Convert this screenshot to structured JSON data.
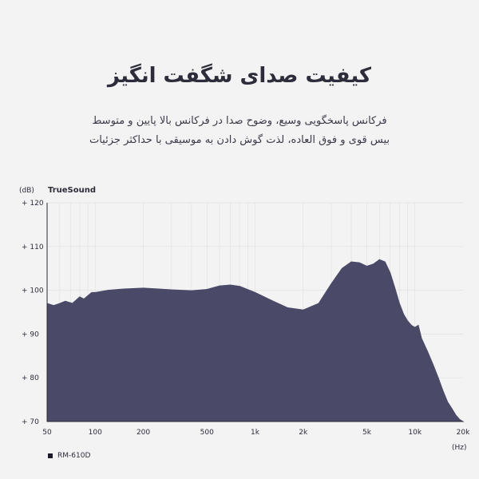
{
  "header": {
    "title": "کیفیت صدای شگفت انگیز",
    "subtitle_lines": [
      "فرکانس پاسخگویی وسیع، وضوح صدا در فرکانس بالا پایین و متوسط",
      "بیس قوی و فوق العاده، لذت گوش دادن به موسیقی با حداکثر جزئیات"
    ]
  },
  "colors": {
    "fill": "#4a4a68",
    "grid": "#e2e2e2",
    "axis": "#2b2b3a"
  },
  "chart_data": {
    "type": "area",
    "title": "",
    "brand_label": "TrueSound",
    "ylabel": "(dB)",
    "xlabel": "(Hz)",
    "ylim": [
      70,
      120
    ],
    "xlim": [
      50,
      20000
    ],
    "x_scale": "log",
    "grid": true,
    "y_ticks": [
      120,
      110,
      100,
      90,
      80,
      70
    ],
    "y_tick_labels": [
      "+ 120",
      "+ 110",
      "+ 100",
      "+ 90",
      "+ 80",
      "+ 70"
    ],
    "x_ticks": [
      50,
      100,
      200,
      500,
      1000,
      2000,
      5000,
      10000,
      20000
    ],
    "x_tick_labels": [
      "50",
      "100",
      "200",
      "500",
      "1k",
      "2k",
      "5k",
      "10k",
      "20k"
    ],
    "legend_position": "bottom-left",
    "series": [
      {
        "name": "RM-610D",
        "x": [
          50,
          55,
          60,
          65,
          72,
          80,
          85,
          95,
          100,
          120,
          150,
          200,
          250,
          300,
          400,
          500,
          600,
          700,
          800,
          1000,
          1300,
          1600,
          2000,
          2500,
          3000,
          3500,
          4000,
          4500,
          5000,
          5500,
          6000,
          6500,
          7000,
          7500,
          8000,
          8500,
          9000,
          9500,
          10000,
          10500,
          11000,
          12000,
          13000,
          14000,
          15000,
          16000,
          17000,
          18000,
          19000,
          20000
        ],
        "y": [
          97,
          96.5,
          97,
          97.5,
          97,
          98.5,
          98,
          99.5,
          99.5,
          100,
          100.3,
          100.5,
          100.3,
          100.1,
          99.9,
          100.2,
          101,
          101.2,
          100.9,
          99.5,
          97.5,
          96,
          95.5,
          97,
          101.5,
          105,
          106.5,
          106.3,
          105.5,
          106,
          107,
          106.5,
          104,
          100.5,
          97,
          94.5,
          93,
          92,
          91.5,
          92,
          89,
          86,
          83,
          80,
          77,
          74.5,
          73,
          71.5,
          70.5,
          70
        ]
      }
    ]
  }
}
